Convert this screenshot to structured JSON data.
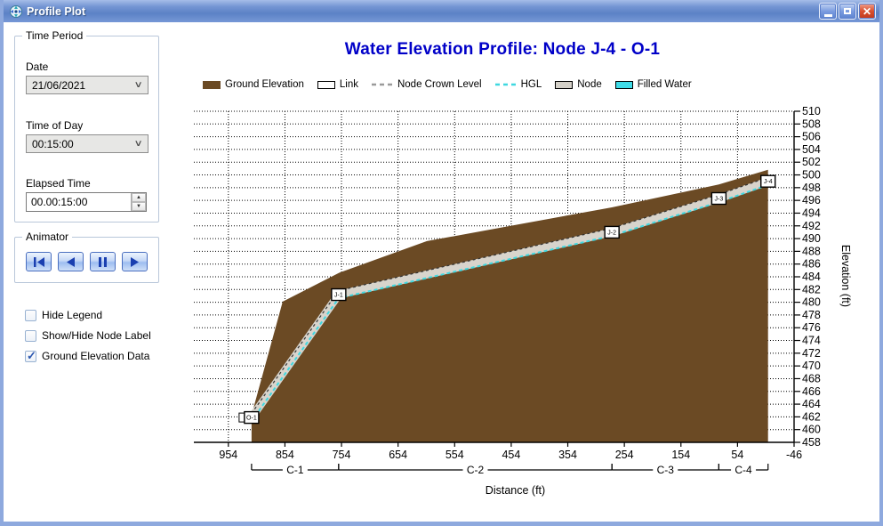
{
  "window": {
    "title": "Profile Plot",
    "controls": {
      "minimize": "minimize",
      "restore": "restore",
      "close": "close"
    }
  },
  "sidebar": {
    "time_period": {
      "legend": "Time Period",
      "date_label": "Date",
      "date_value": "21/06/2021",
      "time_label": "Time of Day",
      "time_value": "00:15:00",
      "elapsed_label": "Elapsed Time",
      "elapsed_value": "00.00:15:00"
    },
    "animator": {
      "legend": "Animator",
      "buttons": [
        "skip-to-start",
        "step-back",
        "pause",
        "play"
      ]
    },
    "checkboxes": [
      {
        "label": "Hide Legend",
        "checked": false
      },
      {
        "label": "Show/Hide Node Label",
        "checked": false
      },
      {
        "label": "Ground Elevation Data",
        "checked": true
      }
    ]
  },
  "chart_data": {
    "type": "area",
    "title": "Water Elevation Profile: Node J-4 - O-1",
    "xlabel": "Distance (ft)",
    "ylabel": "Elevation (ft)",
    "xlim": [
      1015,
      -46
    ],
    "ylim": [
      458,
      510
    ],
    "x_ticks": [
      954,
      854,
      754,
      654,
      554,
      454,
      354,
      254,
      154,
      54,
      -46
    ],
    "y_tick_step": 2,
    "grid": "dotted",
    "legend_position": "top",
    "legend": [
      {
        "label": "Ground Elevation",
        "swatch": "filled",
        "color": "#6B4A24"
      },
      {
        "label": "Link",
        "swatch": "box",
        "color": "#FFFFFF"
      },
      {
        "label": "Node Crown Level",
        "swatch": "dashes",
        "color": "#9A9A9A"
      },
      {
        "label": "HGL",
        "swatch": "dashes",
        "color": "#3FD8E0"
      },
      {
        "label": "Node",
        "swatch": "box",
        "color": "#D4D0C8"
      },
      {
        "label": "Filled Water",
        "swatch": "box",
        "color": "#3FDCE8"
      }
    ],
    "ground_profile": [
      {
        "dist": 913,
        "elev": 462.3
      },
      {
        "dist": 858,
        "elev": 480.1
      },
      {
        "dist": 759,
        "elev": 484.6
      },
      {
        "dist": 603,
        "elev": 489.6
      },
      {
        "dist": 276,
        "elev": 494.9
      },
      {
        "dist": 87,
        "elev": 498.5
      },
      {
        "dist": 0,
        "elev": 500.8
      }
    ],
    "nodes": [
      {
        "id": "O-1",
        "dist": 913,
        "elev": 461.9,
        "outfall": true
      },
      {
        "id": "J-1",
        "dist": 759,
        "elev": 481.2
      },
      {
        "id": "J-2",
        "dist": 276,
        "elev": 491.0
      },
      {
        "id": "J-3",
        "dist": 87,
        "elev": 496.3
      },
      {
        "id": "J-4",
        "dist": 0,
        "elev": 499.0
      }
    ],
    "conduits": [
      {
        "id": "C-1",
        "from_dist": 913,
        "to_dist": 759
      },
      {
        "id": "C-2",
        "from_dist": 759,
        "to_dist": 276
      },
      {
        "id": "C-3",
        "from_dist": 276,
        "to_dist": 87
      },
      {
        "id": "C-4",
        "from_dist": 87,
        "to_dist": 0
      }
    ],
    "colors": {
      "ground": "#6B4A24",
      "link_band": "#D8D4CC",
      "crown_dash": "#333333",
      "hgl_dash": "#3FD8E0",
      "node_box_fill": "#FFFFFF",
      "title": "#0000C8",
      "grid": "#000000"
    }
  }
}
